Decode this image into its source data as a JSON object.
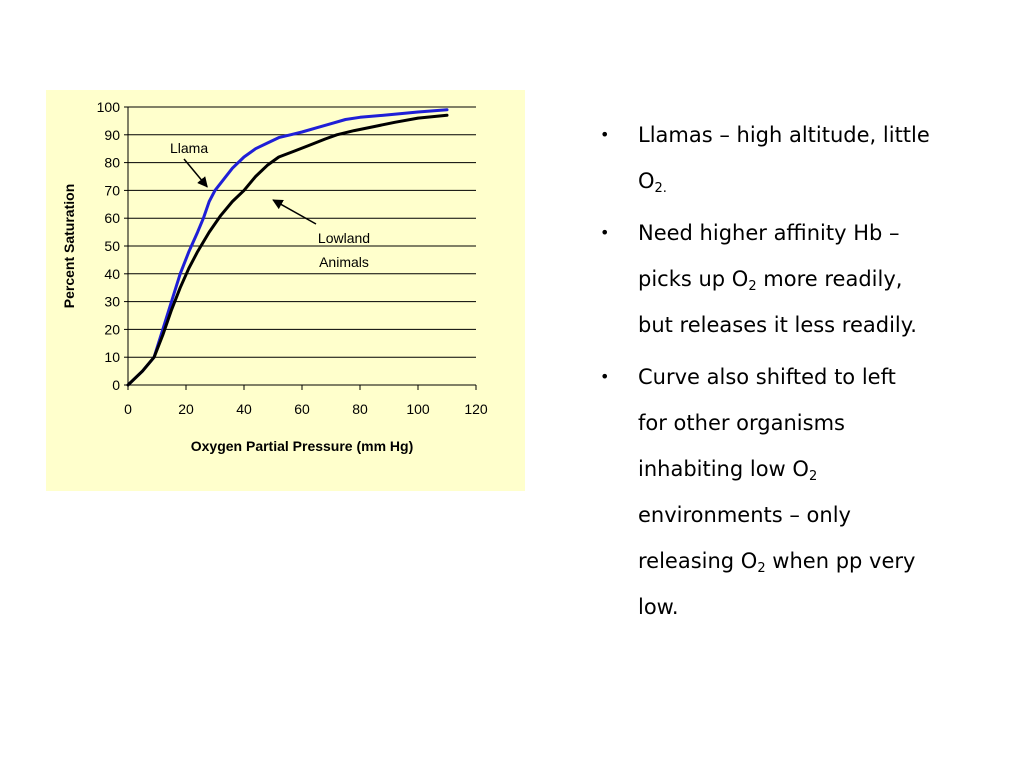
{
  "chart_data": {
    "type": "line",
    "title": "",
    "xlabel": "Oxygen Partial Pressure (mm Hg)",
    "ylabel": "Percent Saturation",
    "xlim": [
      0,
      120
    ],
    "ylim": [
      0,
      100
    ],
    "x_ticks": [
      "0",
      "20",
      "40",
      "60",
      "80",
      "100",
      "120"
    ],
    "y_ticks": [
      "0",
      "10",
      "20",
      "30",
      "40",
      "50",
      "60",
      "70",
      "80",
      "90",
      "100"
    ],
    "grid": "horizontal",
    "series": [
      {
        "name": "Llama",
        "color": "#1f1fd6",
        "points": [
          [
            0,
            0
          ],
          [
            5,
            5
          ],
          [
            9,
            10
          ],
          [
            12,
            20
          ],
          [
            15,
            30
          ],
          [
            18,
            40
          ],
          [
            21,
            48
          ],
          [
            24,
            55
          ],
          [
            26,
            60
          ],
          [
            28,
            66
          ],
          [
            30,
            70
          ],
          [
            33,
            74
          ],
          [
            36,
            78
          ],
          [
            40,
            82
          ],
          [
            44,
            85
          ],
          [
            48,
            87
          ],
          [
            52,
            89
          ],
          [
            56,
            90
          ],
          [
            60,
            91
          ],
          [
            65,
            92.5
          ],
          [
            70,
            94
          ],
          [
            75,
            95.5
          ],
          [
            80,
            96.3
          ],
          [
            90,
            97.2
          ],
          [
            100,
            98.2
          ],
          [
            110,
            99
          ]
        ]
      },
      {
        "name": "Lowland Animals",
        "color": "#000000",
        "points": [
          [
            0,
            0
          ],
          [
            5,
            5
          ],
          [
            9,
            10
          ],
          [
            12,
            18
          ],
          [
            15,
            27
          ],
          [
            18,
            35
          ],
          [
            21,
            42
          ],
          [
            24,
            48
          ],
          [
            28,
            55
          ],
          [
            32,
            61
          ],
          [
            36,
            66
          ],
          [
            40,
            70
          ],
          [
            44,
            75
          ],
          [
            48,
            79
          ],
          [
            52,
            82
          ],
          [
            57,
            84
          ],
          [
            62,
            86
          ],
          [
            68,
            88.5
          ],
          [
            72,
            90
          ],
          [
            78,
            91.5
          ],
          [
            85,
            93
          ],
          [
            92,
            94.5
          ],
          [
            100,
            96
          ],
          [
            110,
            97
          ]
        ]
      }
    ],
    "annotations": [
      {
        "lines": [
          "Llama"
        ],
        "target": [
          28,
          72
        ]
      },
      {
        "lines": [
          "Lowland",
          "Animals"
        ],
        "target": [
          49,
          68
        ]
      }
    ]
  },
  "bullets": [
    {
      "text": "Llamas – high altitude, little O",
      "sub": "2."
    },
    {
      "text": "Need higher affinity Hb – picks up O",
      "sub": "2",
      "text2": " more readily, but releases it less readily."
    },
    {
      "text": "Curve also shifted to left for other organisms inhabiting low O",
      "sub": "2",
      "text2": " environments – only releasing O",
      "sub2": "2",
      "text3": " when pp very low."
    }
  ]
}
